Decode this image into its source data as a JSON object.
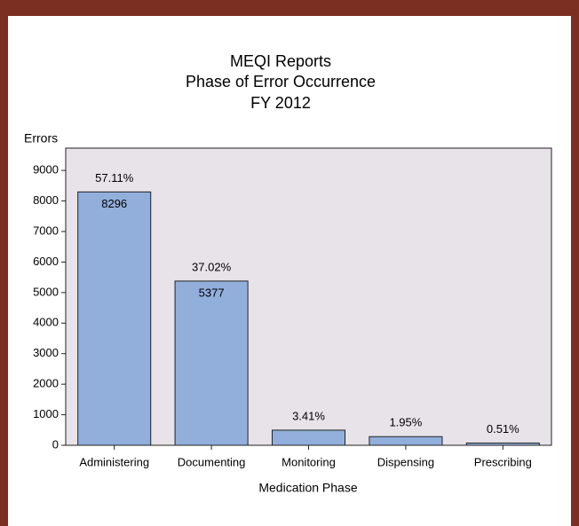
{
  "chart_data": {
    "type": "bar",
    "title": [
      "MEQI Reports",
      "Phase of Error Occurrence",
      "FY 2012"
    ],
    "y_label": "Errors",
    "x_label": "Medication Phase",
    "categories": [
      "Administering",
      "Documenting",
      "Monitoring",
      "Dispensing",
      "Prescribing"
    ],
    "values": [
      8296,
      5377,
      495,
      283,
      74
    ],
    "percentages": {
      "values": [
        57.11,
        37.02,
        3.41,
        1.95,
        0.51
      ],
      "value_labels": [
        "57.11%",
        "37.02%",
        "3.41%",
        "1.95%",
        "0.51%"
      ]
    },
    "color": "#92afdc",
    "ylim": [
      0,
      9730
    ],
    "yticks": [
      0,
      1000,
      2000,
      3000,
      4000,
      5000,
      6000,
      7000,
      8000,
      9000
    ]
  }
}
